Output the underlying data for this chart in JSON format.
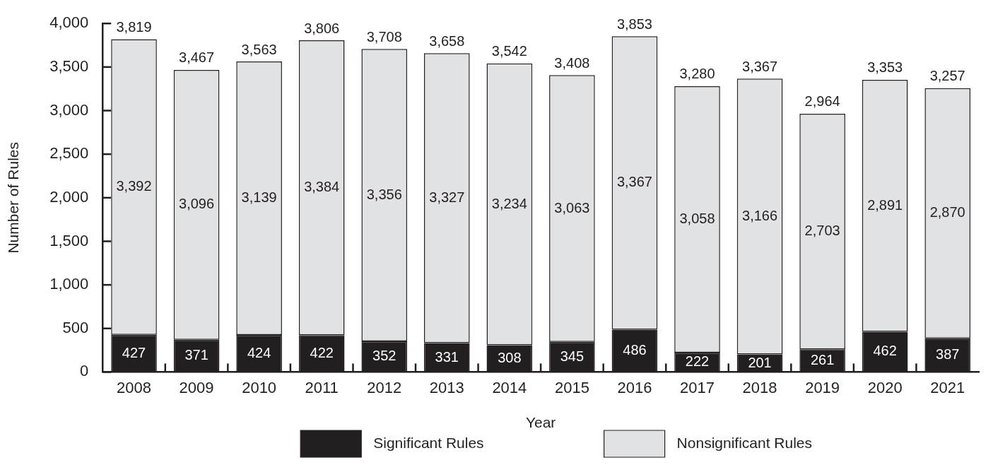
{
  "chart_data": {
    "type": "bar",
    "stacked": true,
    "xlabel": "Year",
    "ylabel": "Number of Rules",
    "categories": [
      "2008",
      "2009",
      "2010",
      "2011",
      "2012",
      "2013",
      "2014",
      "2015",
      "2016",
      "2017",
      "2018",
      "2019",
      "2020",
      "2021"
    ],
    "series": [
      {
        "name": "Significant Rules",
        "color": "#231f20",
        "values": [
          427,
          371,
          424,
          422,
          352,
          331,
          308,
          345,
          486,
          222,
          201,
          261,
          462,
          387
        ],
        "value_labels": [
          "427",
          "371",
          "424",
          "422",
          "352",
          "331",
          "308",
          "345",
          "486",
          "222",
          "201",
          "261",
          "462",
          "387"
        ]
      },
      {
        "name": "Nonsignificant Rules",
        "color": "#e1e2e4",
        "values": [
          3392,
          3096,
          3139,
          3384,
          3356,
          3327,
          3234,
          3063,
          3367,
          3058,
          3166,
          2703,
          2891,
          2870
        ],
        "value_labels": [
          "3,392",
          "3,096",
          "3,139",
          "3,384",
          "3,356",
          "3,327",
          "3,234",
          "3,063",
          "3,367",
          "3,058",
          "3,166",
          "2,703",
          "2,891",
          "2,870"
        ]
      }
    ],
    "totals": [
      "3,819",
      "3,467",
      "3,563",
      "3,806",
      "3,708",
      "3,658",
      "3,542",
      "3,408",
      "3,853",
      "3,280",
      "3,367",
      "2,964",
      "3,353",
      "3,257"
    ],
    "ylim": [
      0,
      4000
    ],
    "yticks": [
      0,
      500,
      {
        "value": 1000,
        "label": "1,000"
      },
      {
        "value": 1500,
        "label": "1,500"
      },
      {
        "value": 2000,
        "label": "2,000"
      },
      {
        "value": 2500,
        "label": "2,500"
      },
      {
        "value": 3000,
        "label": "3,000"
      },
      {
        "value": 3500,
        "label": "3,500"
      },
      {
        "value": 4000,
        "label": "4,000"
      }
    ],
    "grid": false,
    "legend": "bottom"
  }
}
